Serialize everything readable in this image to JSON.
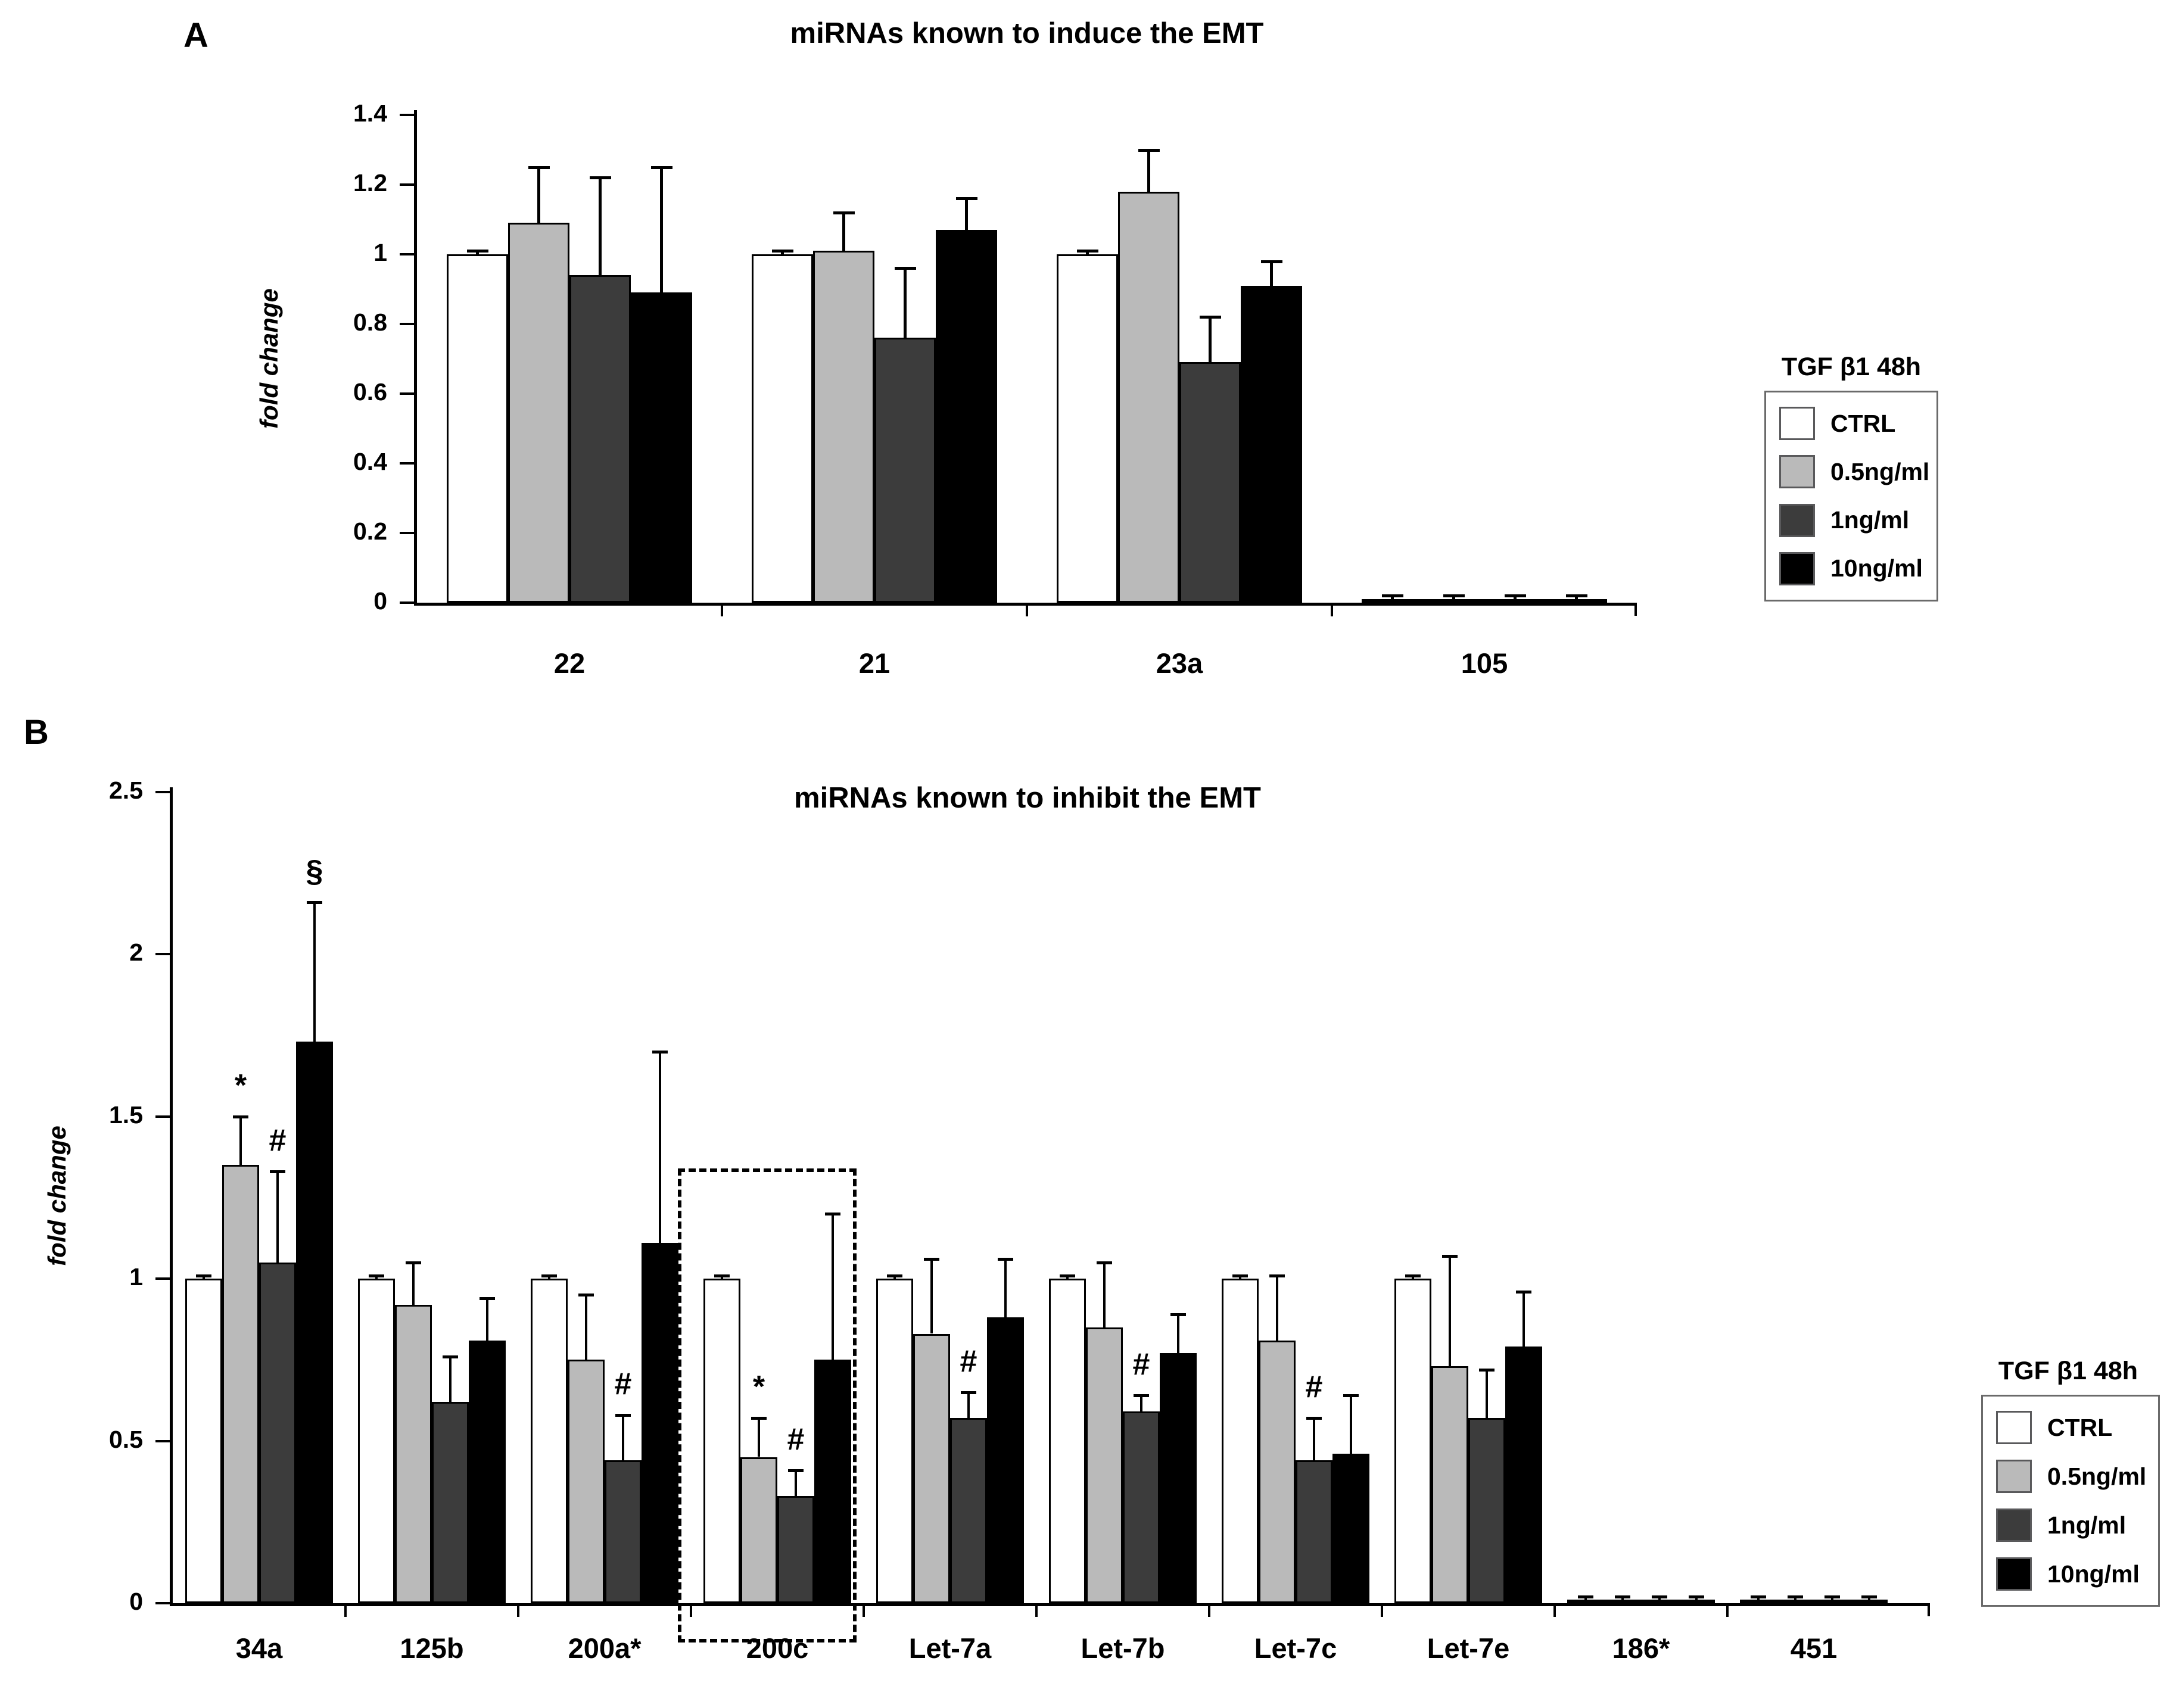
{
  "figure": {
    "background": "#ffffff",
    "bar_outline_color": "#000000",
    "error_bar_color": "#000000"
  },
  "chart_data": [
    {
      "type": "bar",
      "panel": "A",
      "title": "miRNAs known to induce the EMT",
      "ylabel": "fold change",
      "xlabel": "",
      "ylim": [
        0,
        1.4
      ],
      "yticks": [
        0,
        0.2,
        0.4,
        0.6,
        0.8,
        1,
        1.2,
        1.4
      ],
      "grid": false,
      "categories": [
        "22",
        "21",
        "23a",
        "105"
      ],
      "series": [
        {
          "name": "CTRL",
          "color": "#ffffff",
          "values": [
            1.0,
            1.0,
            1.0,
            0.01
          ],
          "errors_up": [
            0.01,
            0.01,
            0.01,
            0.01
          ]
        },
        {
          "name": "0.5ng/ml",
          "color": "#bababa",
          "values": [
            1.09,
            1.01,
            1.18,
            0.01
          ],
          "errors_up": [
            0.16,
            0.11,
            0.12,
            0.01
          ]
        },
        {
          "name": "1ng/ml",
          "color": "#3c3c3c",
          "values": [
            0.94,
            0.76,
            0.69,
            0.01
          ],
          "errors_up": [
            0.28,
            0.2,
            0.13,
            0.01
          ]
        },
        {
          "name": "10ng/ml",
          "color": "#000000",
          "values": [
            0.89,
            1.07,
            0.91,
            0.01
          ],
          "errors_up": [
            0.36,
            0.09,
            0.07,
            0.01
          ]
        }
      ],
      "legend": {
        "title": "TGF β1 48h",
        "position": "right",
        "entries": [
          {
            "label": "CTRL",
            "color": "#ffffff"
          },
          {
            "label": "0.5ng/ml",
            "color": "#bababa"
          },
          {
            "label": "1ng/ml",
            "color": "#3c3c3c"
          },
          {
            "label": "10ng/ml",
            "color": "#000000"
          }
        ]
      },
      "sig_markers": [],
      "highlight_box": null
    },
    {
      "type": "bar",
      "panel": "B",
      "title": "miRNAs known to inhibit the EMT",
      "ylabel": "fold change",
      "xlabel": "",
      "ylim": [
        0,
        2.5
      ],
      "yticks": [
        0,
        0.5,
        1,
        1.5,
        2,
        2.5
      ],
      "grid": false,
      "categories": [
        "34a",
        "125b",
        "200a*",
        "200c",
        "Let-7a",
        "Let-7b",
        "Let-7c",
        "Let-7e",
        "186*",
        "451"
      ],
      "series": [
        {
          "name": "CTRL",
          "color": "#ffffff",
          "values": [
            1.0,
            1.0,
            1.0,
            1.0,
            1.0,
            1.0,
            1.0,
            1.0,
            0.01,
            0.01
          ],
          "errors_up": [
            0.01,
            0.01,
            0.01,
            0.01,
            0.01,
            0.01,
            0.01,
            0.01,
            0.01,
            0.01
          ]
        },
        {
          "name": "0.5ng/ml",
          "color": "#bababa",
          "values": [
            1.35,
            0.92,
            0.75,
            0.45,
            0.83,
            0.85,
            0.81,
            0.73,
            0.01,
            0.01
          ],
          "errors_up": [
            0.15,
            0.13,
            0.2,
            0.12,
            0.23,
            0.2,
            0.2,
            0.34,
            0.01,
            0.01
          ]
        },
        {
          "name": "1ng/ml",
          "color": "#3c3c3c",
          "values": [
            1.05,
            0.62,
            0.44,
            0.33,
            0.57,
            0.59,
            0.44,
            0.57,
            0.01,
            0.01
          ],
          "errors_up": [
            0.28,
            0.14,
            0.14,
            0.08,
            0.08,
            0.05,
            0.13,
            0.15,
            0.01,
            0.01
          ]
        },
        {
          "name": "10ng/ml",
          "color": "#000000",
          "values": [
            1.73,
            0.81,
            1.11,
            0.75,
            0.88,
            0.77,
            0.46,
            0.79,
            0.01,
            0.01
          ],
          "errors_up": [
            0.43,
            0.13,
            0.59,
            0.45,
            0.18,
            0.12,
            0.18,
            0.17,
            0.01,
            0.01
          ]
        }
      ],
      "legend": {
        "title": "TGF β1 48h",
        "position": "right",
        "entries": [
          {
            "label": "CTRL",
            "color": "#ffffff"
          },
          {
            "label": "0.5ng/ml",
            "color": "#bababa"
          },
          {
            "label": "1ng/ml",
            "color": "#3c3c3c"
          },
          {
            "label": "10ng/ml",
            "color": "#000000"
          }
        ]
      },
      "sig_markers": [
        {
          "category": "34a",
          "series": "0.5ng/ml",
          "symbol": "*"
        },
        {
          "category": "34a",
          "series": "1ng/ml",
          "symbol": "#"
        },
        {
          "category": "34a",
          "series": "10ng/ml",
          "symbol": "§"
        },
        {
          "category": "200a*",
          "series": "1ng/ml",
          "symbol": "#"
        },
        {
          "category": "200c",
          "series": "0.5ng/ml",
          "symbol": "*"
        },
        {
          "category": "200c",
          "series": "1ng/ml",
          "symbol": "#"
        },
        {
          "category": "Let-7a",
          "series": "1ng/ml",
          "symbol": "#"
        },
        {
          "category": "Let-7b",
          "series": "1ng/ml",
          "symbol": "#"
        },
        {
          "category": "Let-7c",
          "series": "1ng/ml",
          "symbol": "#"
        }
      ],
      "highlight_box": {
        "category": "200c",
        "top_value": 1.34,
        "bottom_value": -0.12,
        "style": "dashed"
      }
    }
  ]
}
